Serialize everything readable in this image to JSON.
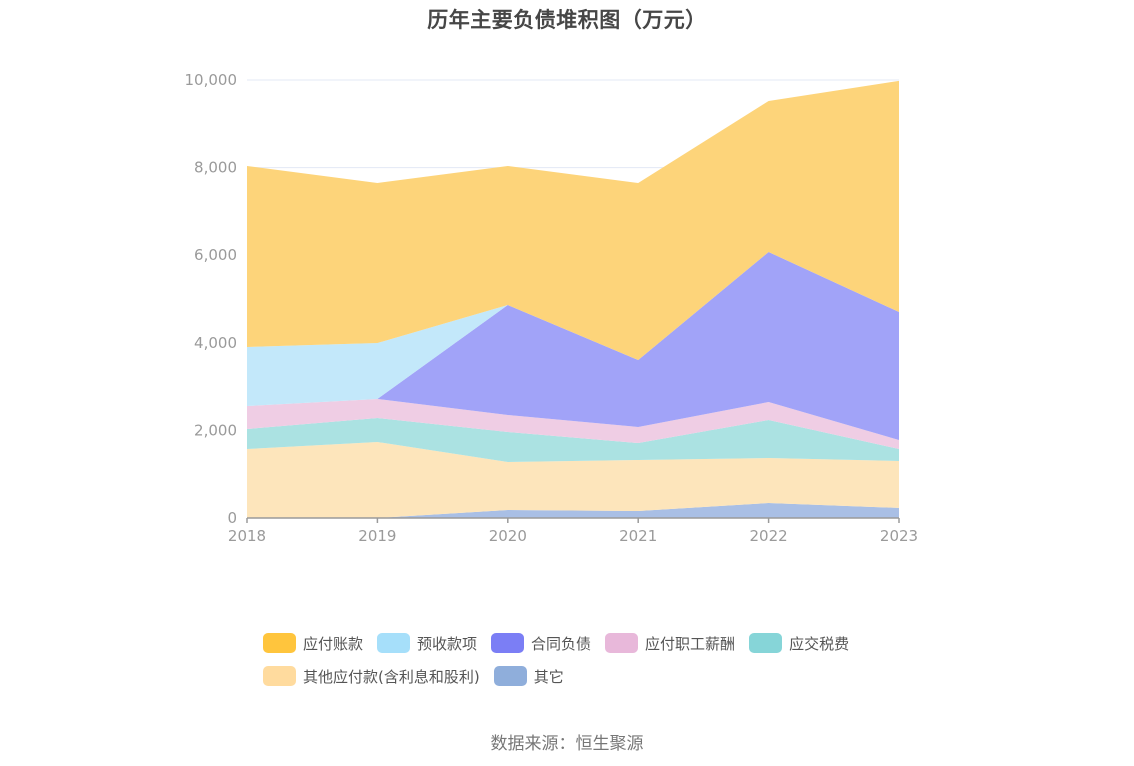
{
  "title": "历年主要负债堆积图（万元）",
  "source": "数据来源：恒生聚源",
  "legend": {
    "row1": [
      {
        "label": "应付账款",
        "color": "#FFC53D"
      },
      {
        "label": "预收款项",
        "color": "#A6DFFA"
      },
      {
        "label": "合同负债",
        "color": "#7B7EF5"
      },
      {
        "label": "应付职工薪酬",
        "color": "#E8B8DA"
      },
      {
        "label": "应交税费",
        "color": "#86D5D8"
      }
    ],
    "row2": [
      {
        "label": "其他应付款(含利息和股利)",
        "color": "#FFDB9E"
      },
      {
        "label": "其它",
        "color": "#8FAEDB"
      }
    ]
  },
  "chart_data": {
    "type": "area",
    "stacked": true,
    "title": "历年主要负债堆积图（万元）",
    "xlabel": "",
    "ylabel": "",
    "categories": [
      "2018",
      "2019",
      "2020",
      "2021",
      "2022",
      "2023"
    ],
    "ylim": [
      0,
      10000
    ],
    "yticks": [
      0,
      2000,
      4000,
      6000,
      8000,
      10000
    ],
    "ytick_labels": [
      "0",
      "2,000",
      "4,000",
      "6,000",
      "8,000",
      "10,000"
    ],
    "grid": true,
    "legend_position": "bottom",
    "series": [
      {
        "name": "其它",
        "color": "#8FAEDB",
        "fill": "#A9BFE5",
        "values": [
          0,
          0,
          183,
          160,
          342,
          230
        ]
      },
      {
        "name": "其他应付款(含利息和股利)",
        "color": "#FFDB9E",
        "fill": "#FDE5BB",
        "values": [
          1575,
          1735,
          1096,
          1164,
          1028,
          1071
        ]
      },
      {
        "name": "应交税费",
        "color": "#86D5D8",
        "fill": "#ABE2E2",
        "values": [
          457,
          548,
          684,
          388,
          867,
          274
        ]
      },
      {
        "name": "应付职工薪酬",
        "color": "#E8B8DA",
        "fill": "#EFCDE4",
        "values": [
          525,
          434,
          389,
          366,
          411,
          206
        ]
      },
      {
        "name": "合同负债",
        "color": "#7B7EF5",
        "fill": "#A1A3F8",
        "values": [
          0,
          0,
          2511,
          1529,
          3425,
          2922
        ]
      },
      {
        "name": "预收款项",
        "color": "#A6DFFA",
        "fill": "#C3E8FA",
        "values": [
          1347,
          1278,
          0,
          0,
          0,
          0
        ]
      },
      {
        "name": "应付账款",
        "color": "#FFC53D",
        "fill": "#FDD47A",
        "values": [
          4133,
          3653,
          3174,
          4041,
          3448,
          5277
        ]
      }
    ]
  }
}
